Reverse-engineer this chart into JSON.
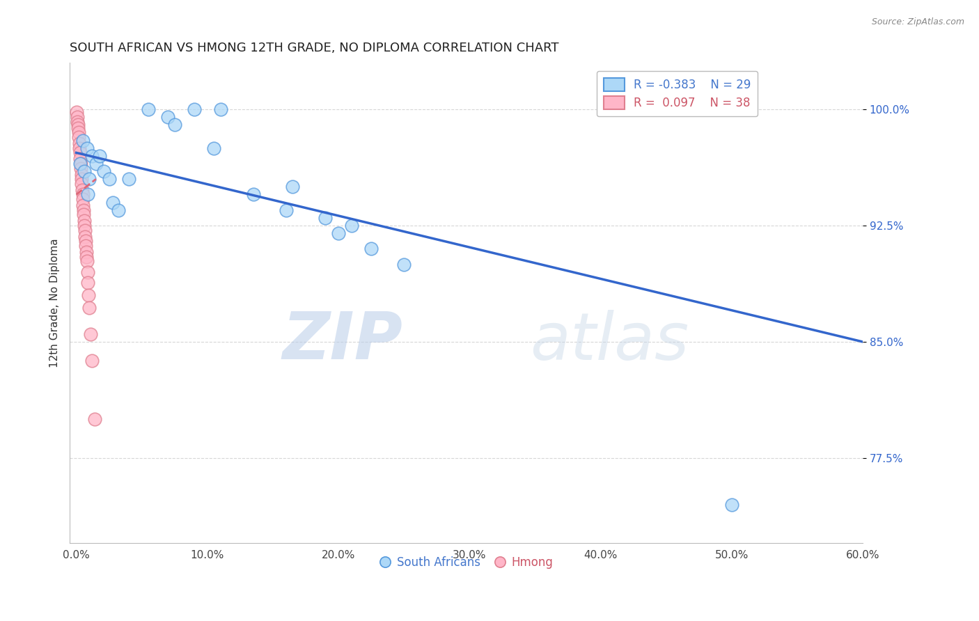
{
  "title": "SOUTH AFRICAN VS HMONG 12TH GRADE, NO DIPLOMA CORRELATION CHART",
  "source": "Source: ZipAtlas.com",
  "ylabel": "12th Grade, No Diploma",
  "xlabel_ticks": [
    "0.0%",
    "10.0%",
    "20.0%",
    "30.0%",
    "40.0%",
    "50.0%",
    "60.0%"
  ],
  "xlabel_vals": [
    0.0,
    10.0,
    20.0,
    30.0,
    40.0,
    50.0,
    60.0
  ],
  "ylabel_ticks": [
    "77.5%",
    "85.0%",
    "92.5%",
    "100.0%"
  ],
  "ylabel_vals": [
    77.5,
    85.0,
    92.5,
    100.0
  ],
  "xlim": [
    -0.5,
    60.0
  ],
  "ylim": [
    72.0,
    103.0
  ],
  "blue_R": -0.383,
  "blue_N": 29,
  "pink_R": 0.097,
  "pink_N": 38,
  "blue_color": "#ADD8F7",
  "pink_color": "#FFB6C8",
  "blue_edge_color": "#5599DD",
  "pink_edge_color": "#E08090",
  "blue_line_color": "#3366CC",
  "pink_line_color": "#DD6677",
  "legend_blue_text_color": "#4477CC",
  "legend_pink_text_color": "#CC5566",
  "blue_scatter_x": [
    0.3,
    0.5,
    0.6,
    0.8,
    1.0,
    1.2,
    1.5,
    1.8,
    2.1,
    2.5,
    2.8,
    3.2,
    4.0,
    5.5,
    7.0,
    9.0,
    11.0,
    13.5,
    16.0,
    19.0,
    21.0,
    22.5,
    7.5,
    10.5,
    16.5,
    20.0,
    25.0,
    50.0,
    0.9
  ],
  "blue_scatter_y": [
    96.5,
    98.0,
    96.0,
    97.5,
    95.5,
    97.0,
    96.5,
    97.0,
    96.0,
    95.5,
    94.0,
    93.5,
    95.5,
    100.0,
    99.5,
    100.0,
    100.0,
    94.5,
    93.5,
    93.0,
    92.5,
    91.0,
    99.0,
    97.5,
    95.0,
    92.0,
    90.0,
    74.5,
    94.5
  ],
  "pink_scatter_x": [
    0.05,
    0.08,
    0.1,
    0.12,
    0.15,
    0.18,
    0.2,
    0.22,
    0.25,
    0.28,
    0.3,
    0.32,
    0.35,
    0.38,
    0.4,
    0.42,
    0.45,
    0.48,
    0.5,
    0.52,
    0.55,
    0.58,
    0.6,
    0.62,
    0.65,
    0.68,
    0.7,
    0.72,
    0.75,
    0.78,
    0.8,
    0.85,
    0.9,
    0.95,
    1.0,
    1.1,
    1.2,
    1.4
  ],
  "pink_scatter_y": [
    99.8,
    99.5,
    99.2,
    99.0,
    98.8,
    98.5,
    98.2,
    97.8,
    97.5,
    97.2,
    96.8,
    96.5,
    96.2,
    95.8,
    95.5,
    95.2,
    94.8,
    94.5,
    94.2,
    93.8,
    93.5,
    93.2,
    92.8,
    92.5,
    92.2,
    91.8,
    91.5,
    91.2,
    90.8,
    90.5,
    90.2,
    89.5,
    88.8,
    88.0,
    87.2,
    85.5,
    83.8,
    80.0
  ],
  "blue_line_x": [
    0.0,
    60.0
  ],
  "blue_line_y": [
    97.2,
    85.0
  ],
  "pink_line_x": [
    0.0,
    1.5
  ],
  "pink_line_y": [
    94.5,
    95.5
  ],
  "watermark_zip": "ZIP",
  "watermark_atlas": "atlas",
  "background_color": "#FFFFFF",
  "grid_color": "#CCCCCC"
}
